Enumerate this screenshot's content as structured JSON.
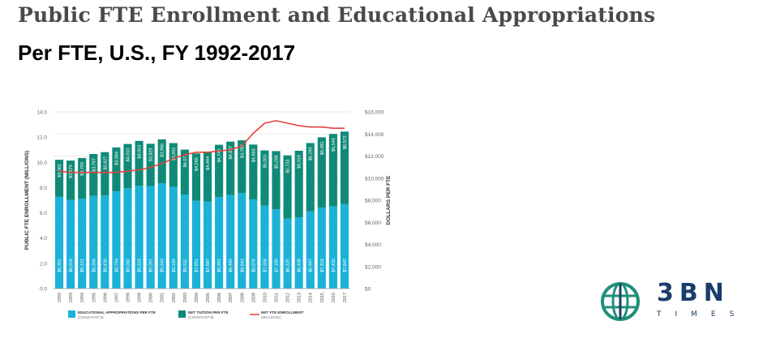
{
  "header": {
    "title": "Public FTE Enrollment and Educational Appropriations",
    "subtitle": "Per FTE, U.S., FY 1992-2017"
  },
  "brand": {
    "logo_text": "3BN",
    "logo_sub": "TIMES",
    "globe_color": "#1f8f7a",
    "text_color": "#1a3d6b"
  },
  "chart_data": {
    "type": "bar",
    "stacked": true,
    "categories": [
      "1992",
      "1993",
      "1994",
      "1995",
      "1996",
      "1997",
      "1998",
      "1999",
      "2000",
      "2001",
      "2002",
      "2003",
      "2004",
      "2005",
      "2006",
      "2007",
      "2008",
      "2009",
      "2010",
      "2011",
      "2012",
      "2013",
      "2014",
      "2015",
      "2016",
      "2017"
    ],
    "series": [
      {
        "name": "EDUCATIONAL APPROPRIATIONS PER FTE (CONSTANT $)",
        "color": "#1ab2d9",
        "values": [
          8301,
          8016,
          8121,
          8386,
          8426,
          8794,
          9082,
          9318,
          9281,
          9540,
          9192,
          8511,
          7951,
          7887,
          8281,
          8469,
          8641,
          8078,
          7506,
          7180,
          6325,
          6458,
          6987,
          7316,
          7455,
          7642
        ],
        "labels": [
          "$8,301",
          "$8,016",
          "$8,121",
          "$8,386",
          "$8,426",
          "$8,794",
          "$9,082",
          "$9,318",
          "$9,281",
          "$9,540",
          "$9,192",
          "$8,511",
          "$7,951",
          "$7,887",
          "$8,281",
          "$8,469",
          "$8,641",
          "$8,078",
          "$7,506",
          "$7,180",
          "$6,325",
          "$6,458",
          "$6,987",
          "$7,316",
          "$7,455",
          "$7,642"
        ]
      },
      {
        "name": "NET TUITION PER FTE (CONSTANT $)",
        "color": "#0f8a78",
        "values": [
          3361,
          3575,
          3703,
          3797,
          3927,
          3984,
          4010,
          4053,
          3829,
          3966,
          3981,
          4071,
          4285,
          4444,
          4740,
          4837,
          4784,
          4960,
          5003,
          5268,
          5733,
          6019,
          6190,
          6381,
          6549,
          6572
        ],
        "labels": [
          "$3,361",
          "$3,575",
          "$3,703",
          "$3,797",
          "$3,927",
          "$3,984",
          "$4,010",
          "$4,053",
          "$3,829",
          "$3,966",
          "$3,981",
          "$4,071",
          "$4,285",
          "$4,444",
          "$4,740",
          "$4,837",
          "$4,784",
          "$4,960",
          "$5,003",
          "$5,268",
          "$5,733",
          "$6,019",
          "$6,190",
          "$6,381",
          "$6,549",
          "$6,572"
        ]
      },
      {
        "name": "NET FTE ENROLLMENT (MILLIONS)",
        "type": "line",
        "axis": "left",
        "color": "#e8413c",
        "values": [
          9.3,
          9.2,
          9.2,
          9.2,
          9.2,
          9.2,
          9.3,
          9.4,
          9.6,
          9.9,
          10.3,
          10.6,
          10.8,
          10.8,
          10.9,
          11.0,
          11.3,
          12.3,
          13.1,
          13.3,
          13.1,
          12.9,
          12.8,
          12.8,
          12.7,
          12.7
        ]
      }
    ],
    "ylabel": "PUBLIC FTE ENROLLMENT (MILLIONS)",
    "y2label": "DOLLARS PER FTE",
    "ylim": [
      0,
      14
    ],
    "y2lim": [
      0,
      16000
    ],
    "yticks": [
      "0.0",
      "2.0",
      "4.0",
      "6.0",
      "8.0",
      "10.0",
      "12.0",
      "14.0"
    ],
    "y2ticks": [
      "$0",
      "$2,000",
      "$4,000",
      "$6,000",
      "$8,000",
      "$10,000",
      "$12,000",
      "$14,000",
      "$16,000"
    ],
    "grid": true,
    "legend": "bottom"
  }
}
